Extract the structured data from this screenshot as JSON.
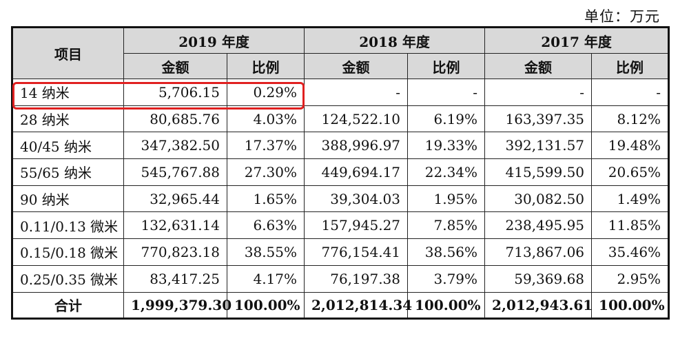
{
  "unit_label": "单位：万元",
  "header": {
    "item": "项目",
    "years": [
      "2019 年度",
      "2018 年度",
      "2017 年度"
    ],
    "amount": "金额",
    "ratio": "比例"
  },
  "rows": [
    {
      "item": "14 纳米",
      "v": [
        "5,706.15",
        "0.29%",
        "-",
        "-",
        "-",
        "-"
      ]
    },
    {
      "item": "28 纳米",
      "v": [
        "80,685.76",
        "4.03%",
        "124,522.10",
        "6.19%",
        "163,397.35",
        "8.12%"
      ]
    },
    {
      "item": "40/45 纳米",
      "v": [
        "347,382.50",
        "17.37%",
        "388,996.97",
        "19.33%",
        "392,131.57",
        "19.48%"
      ]
    },
    {
      "item": "55/65 纳米",
      "v": [
        "545,767.88",
        "27.30%",
        "449,694.17",
        "22.34%",
        "415,599.50",
        "20.65%"
      ]
    },
    {
      "item": "90 纳米",
      "v": [
        "32,965.44",
        "1.65%",
        "39,304.03",
        "1.95%",
        "30,082.50",
        "1.49%"
      ]
    },
    {
      "item": "0.11/0.13 微米",
      "v": [
        "132,631.14",
        "6.63%",
        "157,945.27",
        "7.85%",
        "238,495.95",
        "11.85%"
      ]
    },
    {
      "item": "0.15/0.18 微米",
      "v": [
        "770,823.18",
        "38.55%",
        "776,154.41",
        "38.56%",
        "713,867.06",
        "35.46%"
      ]
    },
    {
      "item": "0.25/0.35 微米",
      "v": [
        "83,417.25",
        "4.17%",
        "76,197.38",
        "3.79%",
        "59,369.68",
        "2.95%"
      ]
    }
  ],
  "total": {
    "item": "合计",
    "v": [
      "1,999,379.30",
      "100.00%",
      "2,012,814.34",
      "100.00%",
      "2,012,943.61",
      "100.00%"
    ]
  },
  "highlight_color": "#e02020"
}
